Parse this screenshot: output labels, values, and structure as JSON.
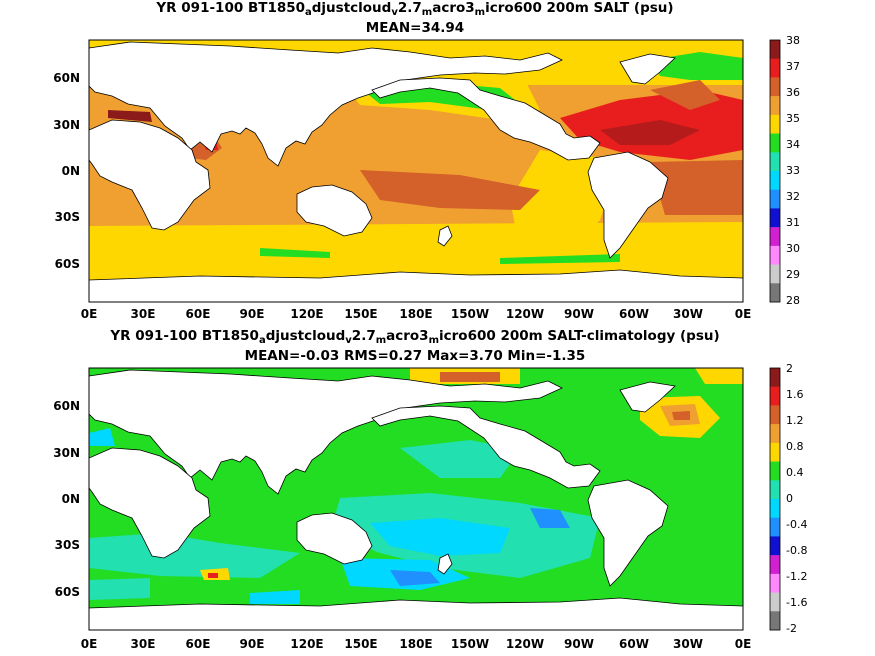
{
  "panels": [
    {
      "title_parts": [
        "YR 091-100 BT1850",
        "a",
        "djustcloud",
        "v",
        "2.7",
        "m",
        "acro3",
        "m",
        "icro600 200m SALT (psu)"
      ],
      "stats": "MEAN=34.94",
      "lat_labels": [
        "60N",
        "30N",
        "0N",
        "30S",
        "60S"
      ],
      "lon_labels": [
        "0E",
        "30E",
        "60E",
        "90E",
        "120E",
        "150E",
        "180E",
        "150W",
        "120W",
        "90W",
        "60W",
        "30W",
        "0E"
      ],
      "colorbar_labels": [
        "38",
        "37",
        "36",
        "35",
        "34",
        "33",
        "32",
        "31",
        "30",
        "29",
        "28"
      ],
      "colorbar_colors": [
        "#8b1a1a",
        "#e81e1e",
        "#d4602a",
        "#f0a030",
        "#ffd700",
        "#22dd22",
        "#22e0b0",
        "#00d8ff",
        "#2090ff",
        "#1010d0",
        "#d020d0",
        "#ff88ff",
        "#cccccc",
        "#777777"
      ]
    },
    {
      "title_parts": [
        "YR 091-100 BT1850",
        "a",
        "djustcloud",
        "v",
        "2.7",
        "m",
        "acro3",
        "m",
        "icro600 200m SALT-climatology (psu)"
      ],
      "stats": "MEAN=-0.03   RMS=0.27   Max=3.70   Min=-1.35",
      "lat_labels": [
        "60N",
        "30N",
        "0N",
        "30S",
        "60S"
      ],
      "lon_labels": [
        "0E",
        "30E",
        "60E",
        "90E",
        "120E",
        "150E",
        "180E",
        "150W",
        "120W",
        "90W",
        "60W",
        "30W",
        "0E"
      ],
      "colorbar_labels": [
        "2",
        "1.6",
        "1.2",
        "0.8",
        "0.4",
        "0",
        "-0.4",
        "-0.8",
        "-1.2",
        "-1.6",
        "-2"
      ],
      "colorbar_colors": [
        "#8b1a1a",
        "#e81e1e",
        "#d4602a",
        "#f0a030",
        "#ffd700",
        "#22dd22",
        "#22e0b0",
        "#00d8ff",
        "#2090ff",
        "#1010d0",
        "#d020d0",
        "#ff88ff",
        "#cccccc",
        "#777777"
      ]
    }
  ]
}
